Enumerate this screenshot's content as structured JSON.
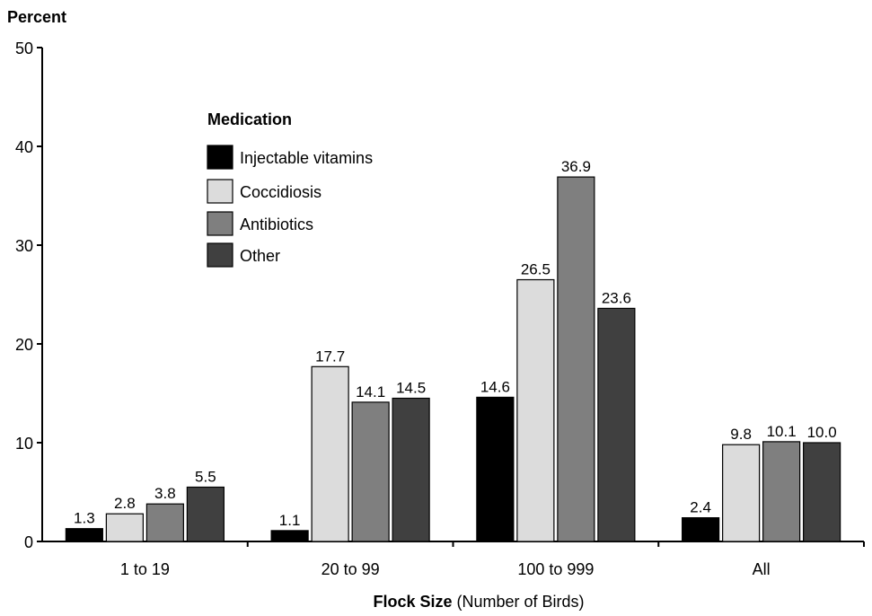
{
  "chart_data": {
    "type": "bar",
    "ylabel": "Percent",
    "xlabel_bold": "Flock Size",
    "xlabel_rest": "(Number of Birds)",
    "ylim": [
      0,
      50
    ],
    "yticks": [
      0,
      10,
      20,
      30,
      40,
      50
    ],
    "categories": [
      "1 to 19",
      "20 to 99",
      "100 to 999",
      "All"
    ],
    "legend": {
      "title": "Medication",
      "placement": "upper-left"
    },
    "series": [
      {
        "name": "Injectable vitamins",
        "color": "#000000",
        "values": [
          1.3,
          1.1,
          14.6,
          2.4
        ],
        "labels": [
          "1.3",
          "1.1",
          "14.6",
          "2.4"
        ]
      },
      {
        "name": "Coccidiosis",
        "color": "#dcdcdc",
        "values": [
          2.8,
          17.7,
          26.5,
          9.8
        ],
        "labels": [
          "2.8",
          "17.7",
          "26.5",
          "9.8"
        ]
      },
      {
        "name": "Antibiotics",
        "color": "#7f7f7f",
        "values": [
          3.8,
          14.1,
          36.9,
          10.1
        ],
        "labels": [
          "3.8",
          "14.1",
          "36.9",
          "10.1"
        ]
      },
      {
        "name": "Other",
        "color": "#404040",
        "values": [
          5.5,
          14.5,
          23.6,
          10.0
        ],
        "labels": [
          "5.5",
          "14.5",
          "23.6",
          "10.0"
        ]
      }
    ]
  }
}
